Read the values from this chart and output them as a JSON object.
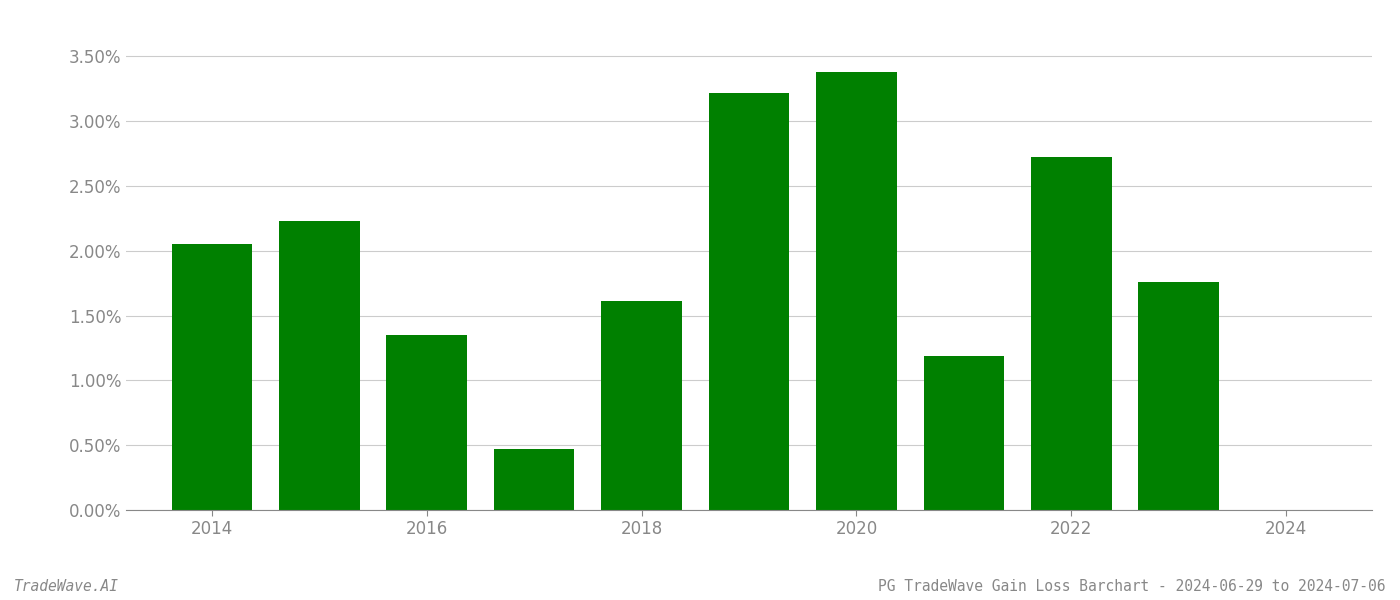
{
  "years": [
    2014,
    2015,
    2016,
    2017,
    2018,
    2019,
    2020,
    2021,
    2022,
    2023
  ],
  "values": [
    0.0205,
    0.0223,
    0.0135,
    0.0047,
    0.0161,
    0.0322,
    0.0338,
    0.0119,
    0.0272,
    0.0176
  ],
  "bar_color": "#008000",
  "background_color": "#ffffff",
  "title": "PG TradeWave Gain Loss Barchart - 2024-06-29 to 2024-07-06",
  "watermark": "TradeWave.AI",
  "ylim": [
    0,
    0.0375
  ],
  "yticks": [
    0.0,
    0.005,
    0.01,
    0.015,
    0.02,
    0.025,
    0.03,
    0.035
  ],
  "grid_color": "#cccccc",
  "axis_label_color": "#888888",
  "title_color": "#888888",
  "watermark_color": "#888888",
  "bar_width": 0.75,
  "title_fontsize": 10.5,
  "watermark_fontsize": 10.5,
  "tick_fontsize": 12
}
